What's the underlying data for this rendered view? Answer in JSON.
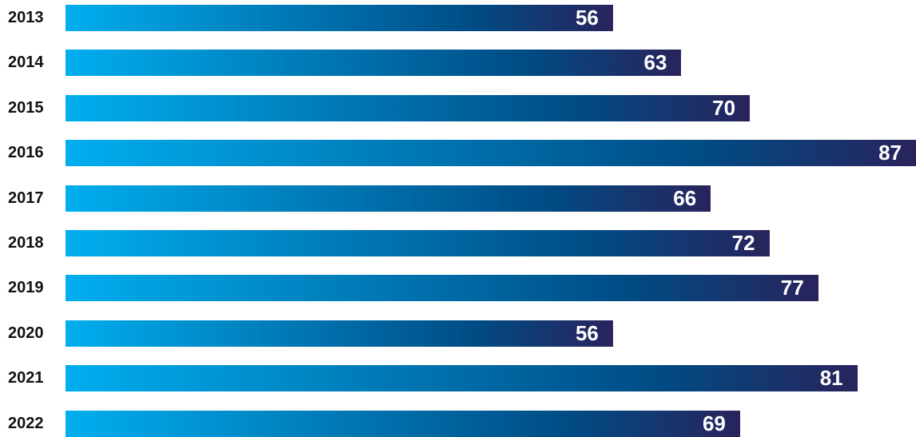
{
  "colors": {
    "bar_start": "#00aeef",
    "bar_mid": "#004b84",
    "bar_end": "#29235c",
    "label": "#111111",
    "value": "#ffffff"
  },
  "chart_data": {
    "type": "bar",
    "orientation": "horizontal",
    "categories": [
      "2013",
      "2014",
      "2015",
      "2016",
      "2017",
      "2018",
      "2019",
      "2020",
      "2021",
      "2022"
    ],
    "values": [
      56,
      63,
      70,
      87,
      66,
      72,
      77,
      56,
      81,
      69
    ],
    "title": "",
    "xlabel": "",
    "ylabel": "",
    "xlim": [
      0,
      87
    ],
    "grid": false,
    "legend": "none"
  }
}
